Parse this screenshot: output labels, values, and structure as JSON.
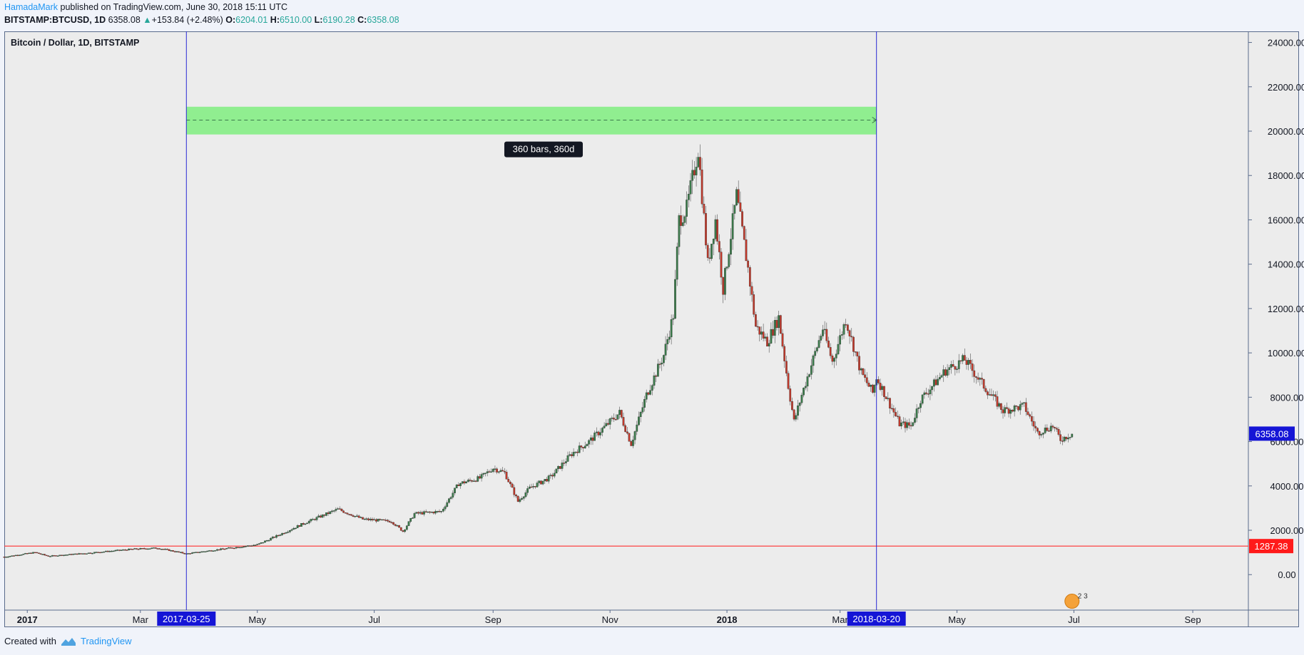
{
  "header": {
    "author": "HamadaMark",
    "published": "published on TradingView.com, June 30, 2018 15:11 UTC",
    "symbol": "BITSTAMP:BTCUSD, 1D",
    "last": "6358.08",
    "change": "+153.84 (+2.48%)",
    "o_label": "O:",
    "o_value": "6204.01",
    "h_label": "H:",
    "h_value": "6510.00",
    "l_label": "L:",
    "l_value": "6190.28",
    "c_label": "C:",
    "c_value": "6358.08"
  },
  "chart_title": "Bitcoin / Dollar, 1D, BITSTAMP",
  "footer": {
    "created_with": "Created with",
    "brand": "TradingView"
  },
  "colors": {
    "up": "#26a69a",
    "down": "#ef5350",
    "candle_up": "#3a7a4a",
    "candle_down": "#c0392b",
    "range_fill": "#90ee90",
    "range_line": "#2a2ad4",
    "support_line": "#ff3030",
    "price_tag": "#1515d6"
  },
  "chart_data": {
    "type": "candlestick",
    "title": "Bitcoin / Dollar, 1D, BITSTAMP",
    "ylim": [
      -1600,
      24500
    ],
    "y_ticks": [
      "24000.00",
      "22000.00",
      "20000.00",
      "18000.00",
      "16000.00",
      "14000.00",
      "12000.00",
      "10000.00",
      "8000.00",
      "6000.00",
      "4000.00",
      "2000.00",
      "0.00"
    ],
    "y_tick_values": [
      24000,
      22000,
      20000,
      18000,
      16000,
      14000,
      12000,
      10000,
      8000,
      6000,
      4000,
      2000,
      0
    ],
    "x_range": [
      "2016-12-20",
      "2018-09-30"
    ],
    "x_ticks": [
      {
        "label": "2017",
        "date": "2017-01-01",
        "bold": true
      },
      {
        "label": "Mar",
        "date": "2017-03-01"
      },
      {
        "label": "May",
        "date": "2017-05-01"
      },
      {
        "label": "Jul",
        "date": "2017-07-01"
      },
      {
        "label": "Sep",
        "date": "2017-09-01"
      },
      {
        "label": "Nov",
        "date": "2017-11-01"
      },
      {
        "label": "2018",
        "date": "2018-01-01",
        "bold": true
      },
      {
        "label": "Mar",
        "date": "2018-03-01"
      },
      {
        "label": "May",
        "date": "2018-05-01"
      },
      {
        "label": "Jul",
        "date": "2018-07-01"
      },
      {
        "label": "Sep",
        "date": "2018-09-01"
      }
    ],
    "close_path": [
      [
        "2016-12-20",
        800
      ],
      [
        "2017-01-05",
        1000
      ],
      [
        "2017-01-12",
        830
      ],
      [
        "2017-01-31",
        960
      ],
      [
        "2017-02-25",
        1150
      ],
      [
        "2017-03-10",
        1200
      ],
      [
        "2017-03-25",
        940
      ],
      [
        "2017-04-15",
        1180
      ],
      [
        "2017-05-01",
        1350
      ],
      [
        "2017-05-10",
        1700
      ],
      [
        "2017-05-25",
        2300
      ],
      [
        "2017-06-12",
        2950
      ],
      [
        "2017-06-25",
        2500
      ],
      [
        "2017-07-10",
        2400
      ],
      [
        "2017-07-16",
        1950
      ],
      [
        "2017-07-22",
        2750
      ],
      [
        "2017-08-05",
        2850
      ],
      [
        "2017-08-14",
        4100
      ],
      [
        "2017-08-25",
        4350
      ],
      [
        "2017-09-01",
        4800
      ],
      [
        "2017-09-07",
        4600
      ],
      [
        "2017-09-14",
        3300
      ],
      [
        "2017-09-20",
        3900
      ],
      [
        "2017-10-01",
        4400
      ],
      [
        "2017-10-12",
        5450
      ],
      [
        "2017-10-21",
        6000
      ],
      [
        "2017-11-06",
        7300
      ],
      [
        "2017-11-12",
        5900
      ],
      [
        "2017-11-20",
        8100
      ],
      [
        "2017-11-29",
        9900
      ],
      [
        "2017-12-04",
        11700
      ],
      [
        "2017-12-07",
        16000
      ],
      [
        "2017-12-11",
        16500
      ],
      [
        "2017-12-17",
        19200
      ],
      [
        "2017-12-22",
        14000
      ],
      [
        "2017-12-26",
        16000
      ],
      [
        "2017-12-30",
        12900
      ],
      [
        "2018-01-06",
        17100
      ],
      [
        "2018-01-12",
        13800
      ],
      [
        "2018-01-16",
        11200
      ],
      [
        "2018-01-22",
        10500
      ],
      [
        "2018-01-28",
        11600
      ],
      [
        "2018-02-02",
        8500
      ],
      [
        "2018-02-05",
        6900
      ],
      [
        "2018-02-09",
        8100
      ],
      [
        "2018-02-20",
        11100
      ],
      [
        "2018-02-25",
        9600
      ],
      [
        "2018-03-04",
        11500
      ],
      [
        "2018-03-12",
        9100
      ],
      [
        "2018-03-18",
        8200
      ],
      [
        "2018-03-20",
        8900
      ],
      [
        "2018-04-01",
        6800
      ],
      [
        "2018-04-07",
        6700
      ],
      [
        "2018-04-12",
        7900
      ],
      [
        "2018-04-25",
        9200
      ],
      [
        "2018-05-05",
        9700
      ],
      [
        "2018-05-15",
        8500
      ],
      [
        "2018-05-25",
        7400
      ],
      [
        "2018-06-05",
        7600
      ],
      [
        "2018-06-12",
        6400
      ],
      [
        "2018-06-20",
        6700
      ],
      [
        "2018-06-24",
        6100
      ],
      [
        "2018-06-30",
        6358
      ]
    ],
    "measure_range": {
      "start": "2017-03-25",
      "end": "2018-03-20",
      "high": 21100,
      "low": 19850,
      "mid": 20500,
      "label": "360 bars, 360d"
    },
    "horizontal_line": {
      "value": 1287.38,
      "label": "1287.38"
    },
    "last_price": {
      "value": 6358.08,
      "label": "6358.08"
    },
    "vertical_markers": [
      {
        "date": "2017-03-25",
        "label": "2017-03-25"
      },
      {
        "date": "2018-03-20",
        "label": "2018-03-20"
      }
    ],
    "badge": "2 3"
  }
}
